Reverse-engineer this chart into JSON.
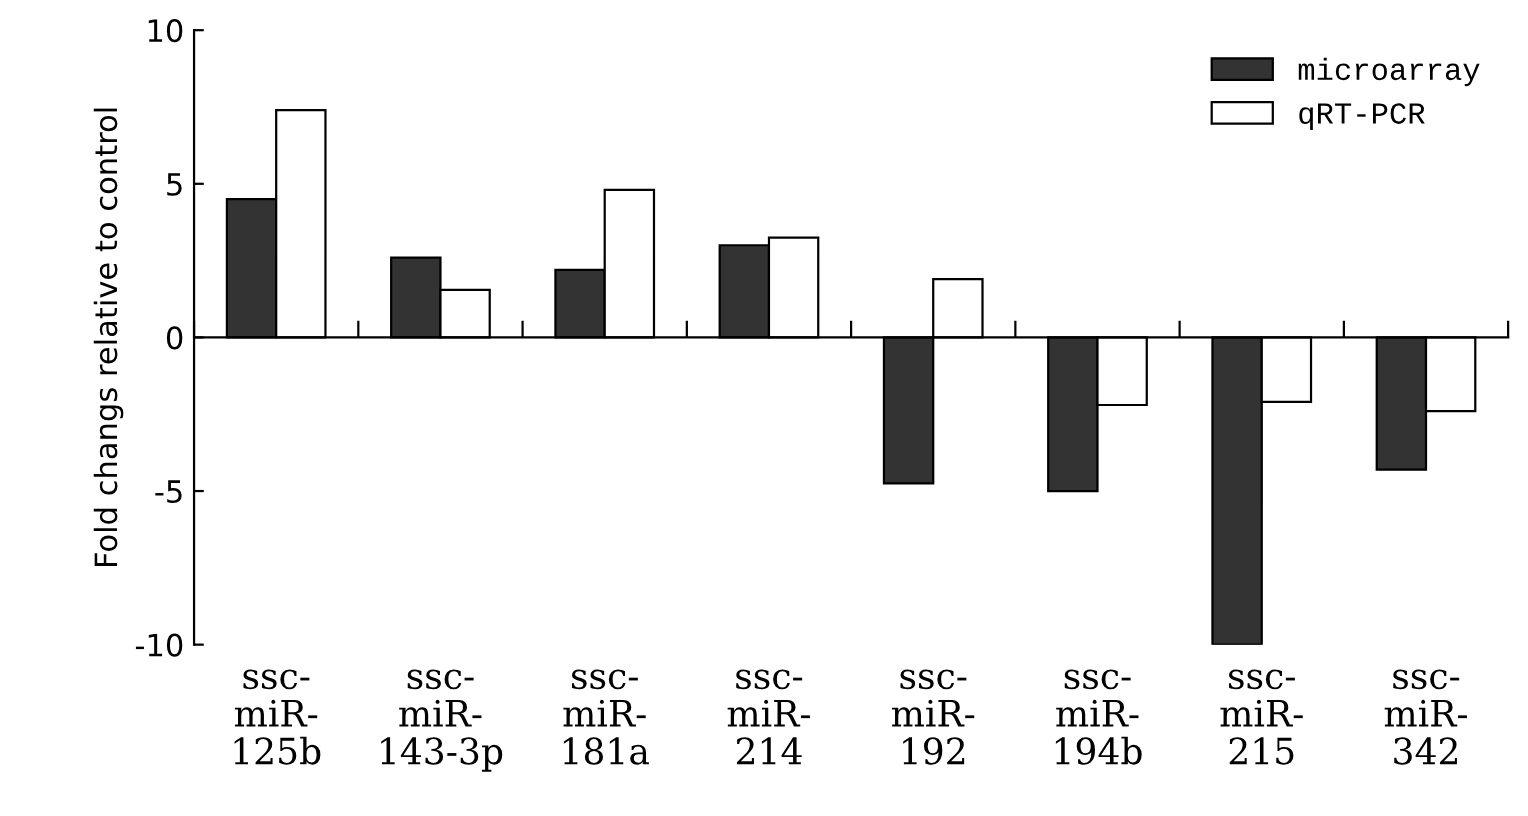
{
  "chart_data": {
    "type": "bar",
    "ylabel": "Fold changs relative to control",
    "categories": [
      "ssc-\nmiR-\n125b",
      "ssc-\nmiR-\n143-3p",
      "ssc-\nmiR-\n181a",
      "ssc-\nmiR-\n214",
      "ssc-\nmiR-\n192",
      "ssc-\nmiR-\n194b",
      "ssc-\nmiR-\n215",
      "ssc-\nmiR-\n342"
    ],
    "series": [
      {
        "name": "microarray",
        "color": "#333333",
        "values": [
          4.5,
          2.6,
          2.2,
          3.0,
          -4.75,
          -5.0,
          -10,
          -4.3
        ]
      },
      {
        "name": "qRT-PCR",
        "color": "#ffffff",
        "values": [
          7.4,
          1.55,
          4.8,
          3.25,
          1.9,
          -2.2,
          -2.1,
          -2.4
        ]
      }
    ],
    "ylim": [
      -10,
      10
    ],
    "yticks": [
      -10,
      -5,
      0,
      5,
      10
    ],
    "legend": "top right"
  }
}
